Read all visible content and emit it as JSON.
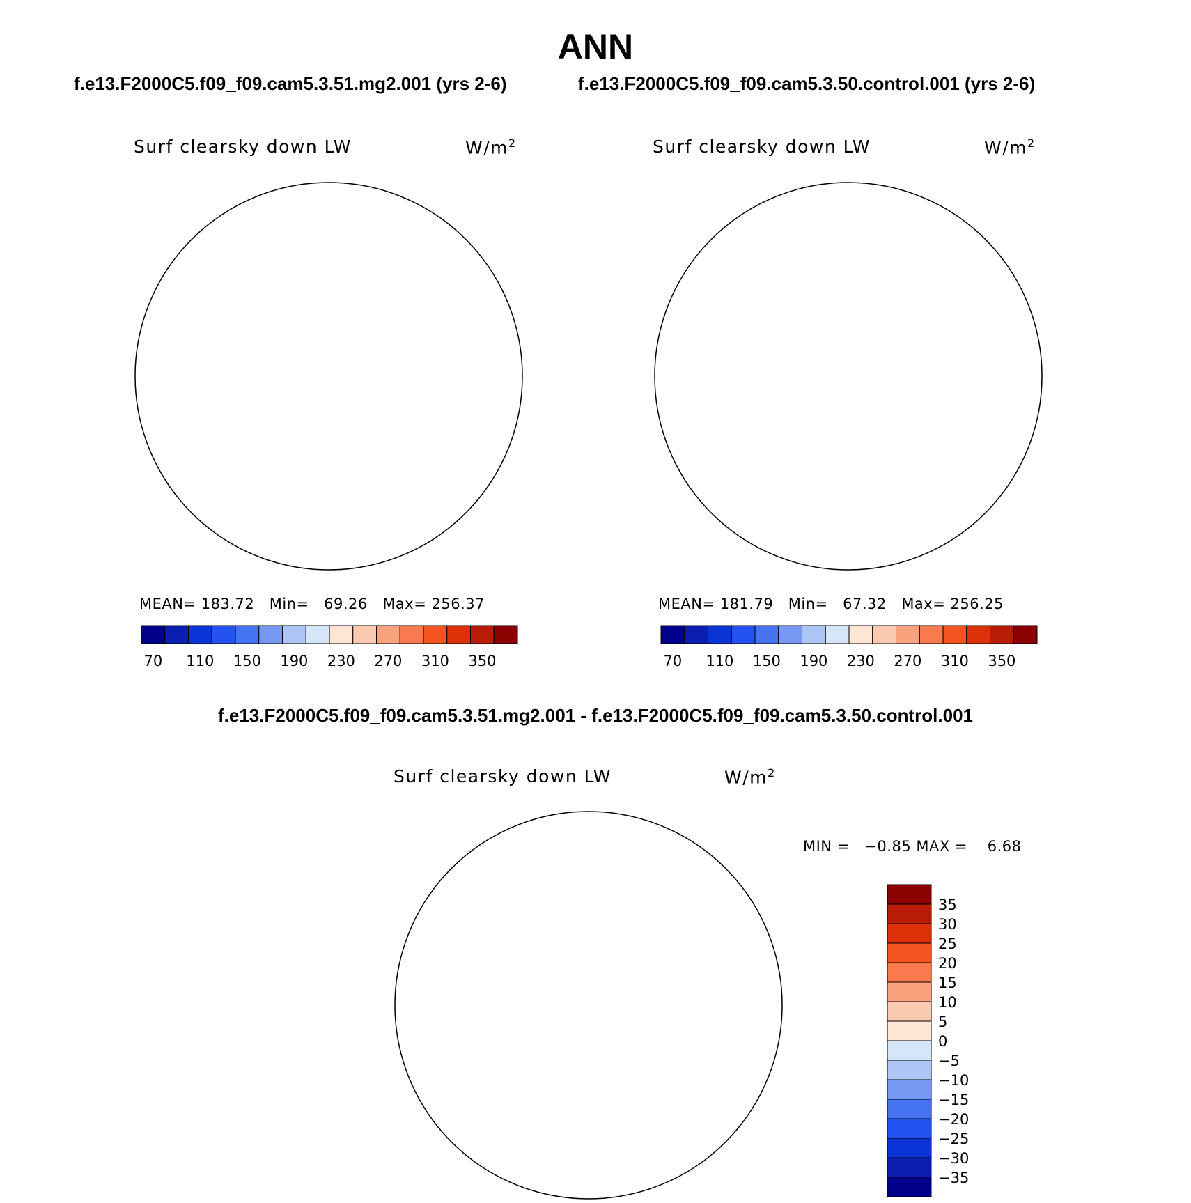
{
  "title": "ANN",
  "case1_title": "f.e13.F2000C5.f09_f09.cam5.3.51.mg2.001 (yrs 2-6)",
  "case2_title": "f.e13.F2000C5.f09_f09.cam5.3.50.control.001 (yrs 2-6)",
  "diff_title": "f.e13.F2000C5.f09_f09.cam5.3.51.mg2.001 - f.e13.F2000C5.f09_f09.cam5.3.50.control.001",
  "panels": [
    {
      "variable": "Surf clearsky down LW",
      "units_base": "W/m",
      "units_exp": "2",
      "stats": {
        "mean_label": "MEAN=",
        "mean": "183.72",
        "min_label": "Min=",
        "min": "69.26",
        "max_label": "Max=",
        "max": "256.37"
      }
    },
    {
      "variable": "Surf clearsky down LW",
      "units_base": "W/m",
      "units_exp": "2",
      "stats": {
        "mean_label": "MEAN=",
        "mean": "181.79",
        "min_label": "Min=",
        "min": "67.32",
        "max_label": "Max=",
        "max": "256.25"
      }
    },
    {
      "variable": "Surf clearsky down LW",
      "units_base": "W/m",
      "units_exp": "2",
      "stats": {
        "min_label": "MIN =",
        "min": "−0.85",
        "max_label": "MAX =",
        "max": "6.68"
      }
    }
  ],
  "colorbar_abs": {
    "colors": [
      "#00008b",
      "#0a1fb0",
      "#0a34d6",
      "#2452f0",
      "#4674f0",
      "#7798f2",
      "#adc6f6",
      "#d5e6f9",
      "#fde6d6",
      "#fbc8b0",
      "#f8a27e",
      "#f97a4e",
      "#f4521e",
      "#dc3008",
      "#b81c06",
      "#8b0000"
    ],
    "tick_labels": [
      "70",
      "110",
      "150",
      "190",
      "230",
      "270",
      "310",
      "350"
    ]
  },
  "colorbar_diff": {
    "colors": [
      "#00008b",
      "#0a1fb0",
      "#0a34d6",
      "#2452f0",
      "#4674f0",
      "#7798f2",
      "#adc6f6",
      "#d5e6f9",
      "#fde6d6",
      "#fbc8b0",
      "#f8a27e",
      "#f97a4e",
      "#f4521e",
      "#dc3008",
      "#b81c06",
      "#8b0000"
    ],
    "tick_labels": [
      "35",
      "30",
      "25",
      "20",
      "15",
      "10",
      "5",
      "0",
      "−5",
      "−10",
      "−15",
      "−20",
      "−25",
      "−30",
      "−35"
    ]
  }
}
